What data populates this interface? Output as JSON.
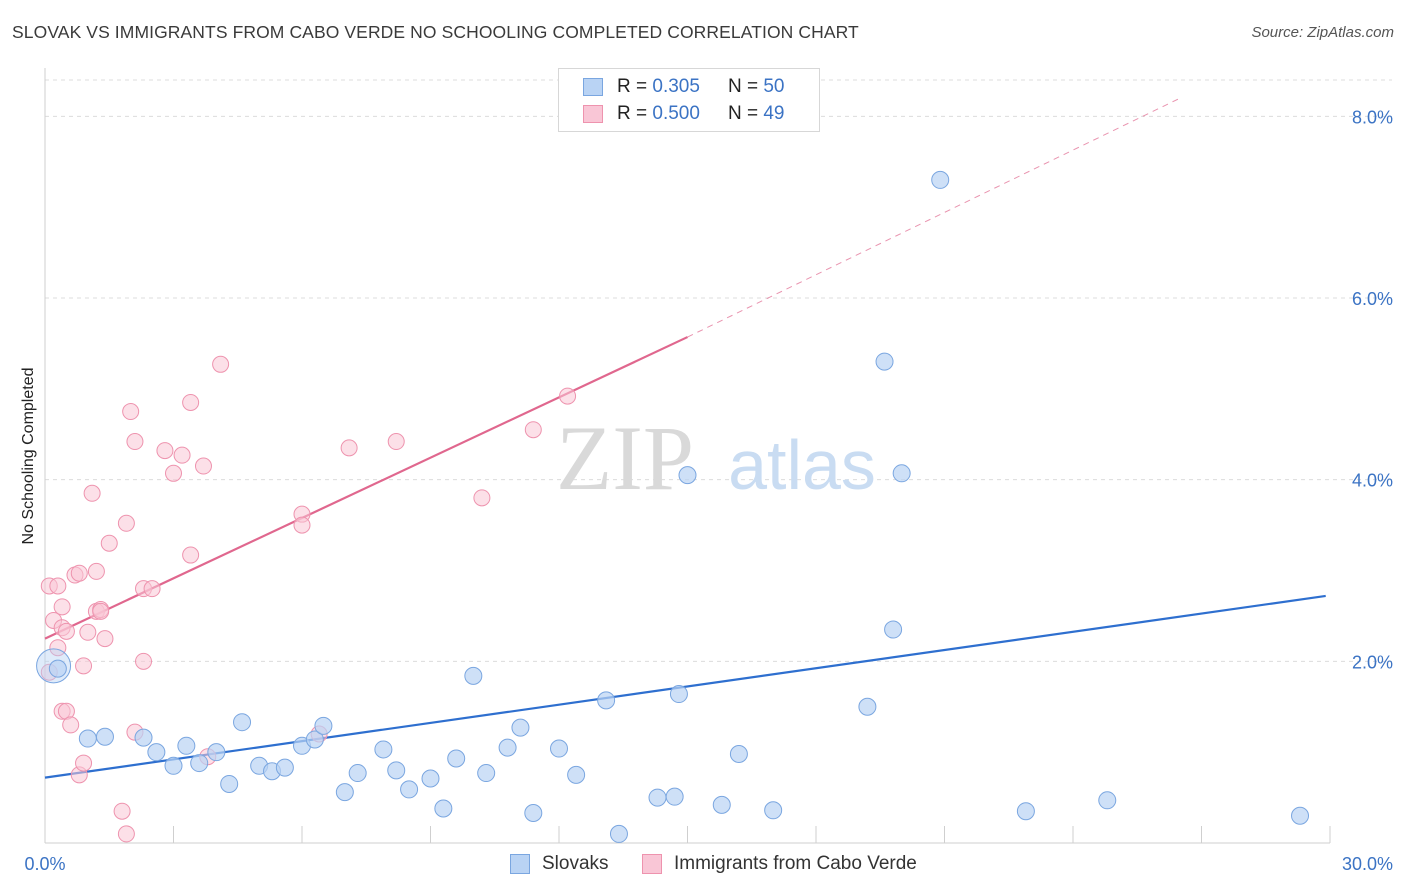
{
  "title": "SLOVAK VS IMMIGRANTS FROM CABO VERDE NO SCHOOLING COMPLETED CORRELATION CHART",
  "source": "Source: ZipAtlas.com",
  "watermark": {
    "zip": "ZIP",
    "atlas": "atlas"
  },
  "colors": {
    "slovak_fill": "#b9d3f4",
    "slovak_stroke": "#7aa6e0",
    "slovak_line": "#2e6fcf",
    "cabo_fill": "#f9c6d6",
    "cabo_stroke": "#ee93ae",
    "cabo_line": "#e0678e",
    "axis_text": "#3b73c4",
    "grid": "#dcdcdc"
  },
  "legend": {
    "rows": [
      {
        "r_label": "R = ",
        "r_value": "0.305",
        "n_label": "N = ",
        "n_value": "50"
      },
      {
        "r_label": "R = ",
        "r_value": "0.500",
        "n_label": "N = ",
        "n_value": "49"
      }
    ]
  },
  "bottom_legend": {
    "slovak": "Slovaks",
    "cabo": "Immigrants from Cabo Verde"
  },
  "chart_data": {
    "type": "scatter",
    "xlabel": "",
    "ylabel": "No Schooling Completed",
    "xlim": [
      0,
      30
    ],
    "ylim": [
      0,
      8.4
    ],
    "x_tick_labels": [
      "0.0%",
      "30.0%"
    ],
    "y_ticks": [
      2,
      4,
      6,
      8
    ],
    "y_tick_labels": [
      "2.0%",
      "4.0%",
      "6.0%",
      "8.0%"
    ],
    "grid": true,
    "series": [
      {
        "name": "Slovaks",
        "points": [
          [
            0.2,
            1.95
          ],
          [
            1.0,
            1.15
          ],
          [
            1.4,
            1.17
          ],
          [
            2.3,
            1.16
          ],
          [
            2.6,
            1.0
          ],
          [
            3.0,
            0.85
          ],
          [
            3.3,
            1.07
          ],
          [
            3.6,
            0.88
          ],
          [
            4.0,
            1.0
          ],
          [
            4.3,
            0.65
          ],
          [
            4.6,
            1.33
          ],
          [
            5.0,
            0.85
          ],
          [
            5.3,
            0.79
          ],
          [
            5.6,
            0.83
          ],
          [
            6.0,
            1.07
          ],
          [
            6.3,
            1.14
          ],
          [
            6.5,
            1.29
          ],
          [
            7.0,
            0.56
          ],
          [
            7.3,
            0.77
          ],
          [
            7.9,
            1.03
          ],
          [
            8.2,
            0.8
          ],
          [
            8.5,
            0.59
          ],
          [
            9.0,
            0.71
          ],
          [
            9.3,
            0.38
          ],
          [
            9.6,
            0.93
          ],
          [
            10.0,
            1.84
          ],
          [
            10.3,
            0.77
          ],
          [
            10.8,
            1.05
          ],
          [
            11.1,
            1.27
          ],
          [
            11.4,
            0.33
          ],
          [
            12.0,
            1.04
          ],
          [
            12.4,
            0.75
          ],
          [
            13.1,
            1.57
          ],
          [
            13.4,
            0.1
          ],
          [
            14.3,
            0.5
          ],
          [
            14.7,
            0.51
          ],
          [
            14.8,
            1.64
          ],
          [
            15.0,
            4.05
          ],
          [
            15.8,
            0.42
          ],
          [
            16.2,
            0.98
          ],
          [
            17.0,
            0.36
          ],
          [
            19.2,
            1.5
          ],
          [
            19.6,
            5.3
          ],
          [
            19.8,
            2.35
          ],
          [
            20.0,
            4.07
          ],
          [
            20.9,
            7.3
          ],
          [
            22.9,
            0.35
          ],
          [
            24.8,
            0.47
          ],
          [
            29.3,
            0.3
          ],
          [
            0.3,
            1.92
          ]
        ],
        "trend": [
          [
            0.0,
            0.72
          ],
          [
            29.9,
            2.72
          ]
        ]
      },
      {
        "name": "Immigrants from Cabo Verde",
        "points": [
          [
            0.1,
            2.83
          ],
          [
            0.1,
            1.88
          ],
          [
            0.2,
            2.45
          ],
          [
            0.3,
            2.83
          ],
          [
            0.3,
            2.15
          ],
          [
            0.4,
            2.6
          ],
          [
            0.4,
            2.37
          ],
          [
            0.4,
            1.45
          ],
          [
            0.5,
            2.33
          ],
          [
            0.5,
            1.45
          ],
          [
            0.6,
            1.3
          ],
          [
            0.7,
            2.95
          ],
          [
            0.8,
            2.97
          ],
          [
            0.8,
            0.75
          ],
          [
            0.9,
            0.88
          ],
          [
            0.9,
            1.95
          ],
          [
            1.0,
            2.32
          ],
          [
            1.1,
            3.85
          ],
          [
            1.2,
            2.55
          ],
          [
            1.2,
            2.99
          ],
          [
            1.3,
            2.57
          ],
          [
            1.3,
            2.55
          ],
          [
            1.4,
            2.25
          ],
          [
            1.5,
            3.3
          ],
          [
            1.8,
            0.35
          ],
          [
            1.9,
            0.1
          ],
          [
            1.9,
            3.52
          ],
          [
            2.0,
            4.75
          ],
          [
            2.1,
            4.42
          ],
          [
            2.1,
            1.22
          ],
          [
            2.3,
            2.0
          ],
          [
            2.3,
            2.8
          ],
          [
            2.5,
            2.8
          ],
          [
            2.8,
            4.32
          ],
          [
            3.0,
            4.07
          ],
          [
            3.2,
            4.27
          ],
          [
            3.4,
            4.85
          ],
          [
            3.4,
            3.17
          ],
          [
            3.7,
            4.15
          ],
          [
            3.8,
            0.95
          ],
          [
            4.1,
            5.27
          ],
          [
            6.0,
            3.62
          ],
          [
            6.0,
            3.5
          ],
          [
            6.4,
            1.2
          ],
          [
            7.1,
            4.35
          ],
          [
            8.2,
            4.42
          ],
          [
            10.2,
            3.8
          ],
          [
            11.4,
            4.55
          ],
          [
            12.2,
            4.92
          ]
        ],
        "trend": [
          [
            0.0,
            2.25
          ],
          [
            15.0,
            5.57
          ]
        ],
        "trend_dashed": [
          [
            15.0,
            5.57
          ],
          [
            26.5,
            8.2
          ]
        ]
      }
    ]
  }
}
